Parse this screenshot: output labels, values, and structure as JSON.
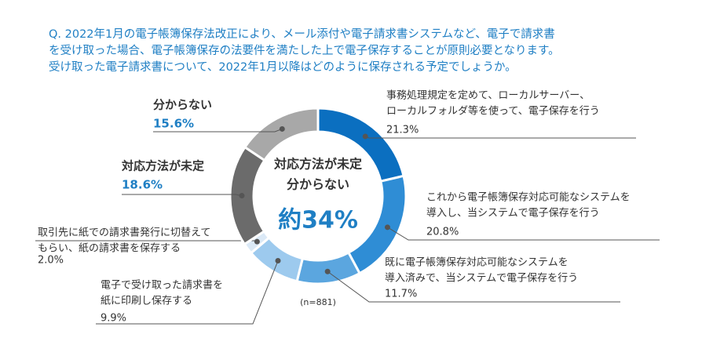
{
  "chart_data": {
    "type": "donut",
    "title": [
      "Q. 2022年1月の電子帳簿保存法改正により、メール添付や電子請求書システムなど、電子で請求書",
      "を受け取った場合、電子帳簿保存の法要件を満たした上で電子保存することが原則必要となります。",
      "受け取った電子請求書について、2022年1月以降はどのように保存される予定でしょうか。"
    ],
    "categories": [
      [
        "事務処理規定を定めて、ローカルサーバー、",
        "ローカルフォルダ等を使って、電子保存を行う"
      ],
      [
        "これから電子帳簿保存対応可能なシステムを",
        "導入し、当システムで電子保存を行う"
      ],
      [
        "既に電子帳簿保存対応可能なシステムを",
        "導入済みで、当システムで電子保存を行う"
      ],
      [
        "電子で受け取った請求書を",
        "紙に印刷し保存する"
      ],
      [
        "取引先に紙での請求書発行に切替えて",
        "もらい、紙の請求書を保存する"
      ],
      [
        "対応方法が未定"
      ],
      [
        "分からない"
      ]
    ],
    "values": [
      21.3,
      20.8,
      11.7,
      9.9,
      2.0,
      18.6,
      15.6
    ],
    "value_labels": [
      "21.3%",
      "20.8%",
      "11.7%",
      "9.9%",
      "2.0%",
      "18.6%",
      "15.6%"
    ],
    "colors": [
      "#0b6fc0",
      "#2f8dd5",
      "#5ba6df",
      "#9dcaee",
      "#dbe9f6",
      "#6b6b6b",
      "#a8a8a8"
    ],
    "center_label": [
      "対応方法が未定",
      "分からない"
    ],
    "center_value": "約34%",
    "note": "(n=881)"
  }
}
